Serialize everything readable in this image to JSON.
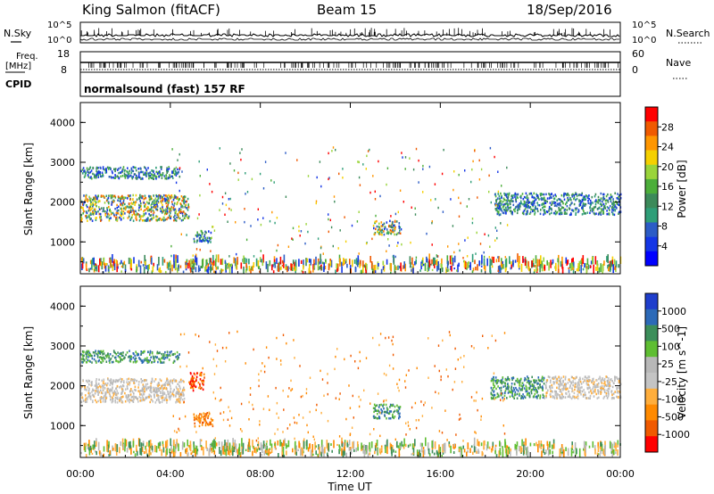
{
  "header": {
    "station": "King Salmon (fitACF)",
    "beam": "Beam 15",
    "date": "18/Sep/2016"
  },
  "top_panels": {
    "nsky_label": "N.Sky",
    "nsearch_label": "N.Search",
    "noise_ticks_left": [
      "10^5",
      "10^0"
    ],
    "noise_ticks_right": [
      "10^5",
      "10^0"
    ],
    "freq_label_1": "Freq.",
    "freq_label_2": "[MHz]",
    "freq_ticks": [
      "18",
      "8"
    ],
    "nave_label": "Nave",
    "nave_ticks": [
      "60",
      "0"
    ],
    "cpid_label": "CPID",
    "cpid_value": "normalsound (fast) 157 RF"
  },
  "chart_data": [
    {
      "type": "heatmap",
      "name": "power",
      "ylabel": "Slant Range [km]",
      "xlabel": "",
      "ylim": [
        200,
        4500
      ],
      "yticks": [
        "4000",
        "3000",
        "2000",
        "1000"
      ],
      "xlim_hours": [
        0,
        24
      ],
      "colorbar": {
        "label": "Power [dB]",
        "ticks": [
          "28",
          "24",
          "20",
          "16",
          "12",
          "8",
          "4"
        ],
        "colors": [
          "#ff0000",
          "#f05a00",
          "#ff9600",
          "#f5d000",
          "#9ad43a",
          "#4cae3a",
          "#3c8a5a",
          "#2f9e78",
          "#2c5cc6",
          "#1436e6",
          "#0000ff"
        ]
      },
      "regions": [
        {
          "t0": 0.0,
          "t1": 4.8,
          "r0": 1500,
          "r1": 2150,
          "level": "high"
        },
        {
          "t0": 0.0,
          "t1": 4.4,
          "r0": 2550,
          "r1": 2850,
          "level": "mid"
        },
        {
          "t0": 5.0,
          "t1": 5.8,
          "r0": 950,
          "r1": 1250,
          "level": "mid"
        },
        {
          "t0": 13.0,
          "t1": 14.2,
          "r0": 1150,
          "r1": 1500,
          "level": "high"
        },
        {
          "t0": 18.4,
          "t1": 24.0,
          "r0": 1650,
          "r1": 2200,
          "level": "mid"
        },
        {
          "t0": 0.0,
          "t1": 24.0,
          "r0": 200,
          "r1": 500,
          "level": "low"
        }
      ]
    },
    {
      "type": "heatmap",
      "name": "velocity",
      "ylabel": "Slant Range [km]",
      "xlabel": "Time UT",
      "ylim": [
        200,
        4500
      ],
      "yticks": [
        "4000",
        "3000",
        "2000",
        "1000"
      ],
      "xlim_hours": [
        0,
        24
      ],
      "xticks": [
        "00:00",
        "04:00",
        "08:00",
        "12:00",
        "16:00",
        "20:00",
        "00:00"
      ],
      "colorbar": {
        "label": "Velocity [m s^-1]",
        "ticks": [
          "1000",
          "500",
          "100",
          "25",
          "-25",
          "-100",
          "-500",
          "-1000"
        ],
        "colors": [
          "#1f3ecc",
          "#2c6ab8",
          "#3c8e5a",
          "#5fbe32",
          "#b8b8b8",
          "#c4c4c4",
          "#ffae3c",
          "#ff8a00",
          "#f05a00",
          "#ff0000"
        ]
      },
      "regions": [
        {
          "t0": 0.0,
          "t1": 4.6,
          "r0": 1550,
          "r1": 2150,
          "level": "gray"
        },
        {
          "t0": 0.0,
          "t1": 4.4,
          "r0": 2550,
          "r1": 2850,
          "level": "green"
        },
        {
          "t0": 4.8,
          "t1": 5.5,
          "r0": 1850,
          "r1": 2300,
          "level": "red"
        },
        {
          "t0": 5.0,
          "t1": 5.9,
          "r0": 950,
          "r1": 1300,
          "level": "orange"
        },
        {
          "t0": 13.0,
          "t1": 14.2,
          "r0": 1150,
          "r1": 1500,
          "level": "green"
        },
        {
          "t0": 18.2,
          "t1": 20.6,
          "r0": 1650,
          "r1": 2200,
          "level": "green"
        },
        {
          "t0": 20.6,
          "t1": 24.0,
          "r0": 1650,
          "r1": 2200,
          "level": "gray"
        },
        {
          "t0": 0.0,
          "t1": 24.0,
          "r0": 200,
          "r1": 500,
          "level": "low"
        }
      ]
    }
  ]
}
